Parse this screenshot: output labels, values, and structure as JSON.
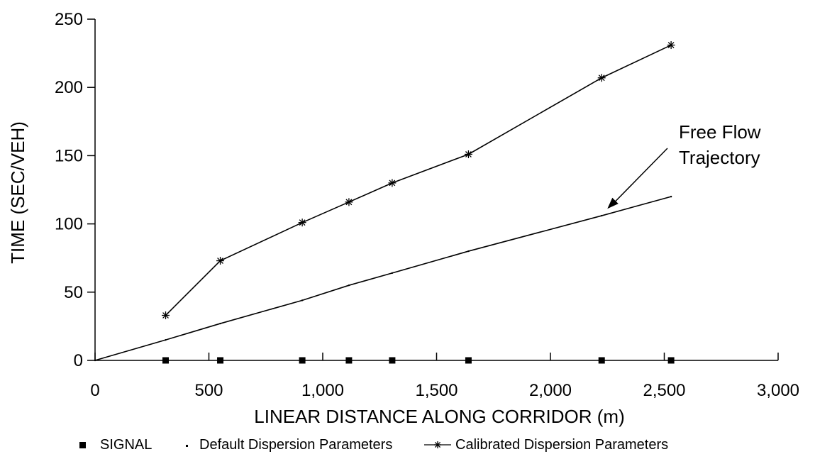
{
  "chart_data": {
    "type": "line",
    "xlabel": "LINEAR DISTANCE ALONG CORRIDOR (m)",
    "ylabel": "TIME (SEC/VEH)",
    "xlim": [
      0,
      3000
    ],
    "ylim": [
      0,
      250
    ],
    "x_ticks": [
      0,
      500,
      1000,
      1500,
      2000,
      2500,
      3000
    ],
    "x_tick_labels": [
      "0",
      "500",
      "1,000",
      "1,500",
      "2,000",
      "2,500",
      "3,000"
    ],
    "y_ticks": [
      0,
      50,
      100,
      150,
      200,
      250
    ],
    "y_tick_labels": [
      "0",
      "50",
      "100",
      "150",
      "200",
      "250"
    ],
    "grid": false,
    "legend_position": "bottom",
    "series": [
      {
        "name": "SIGNAL",
        "marker": "square",
        "line": false,
        "x": [
          310,
          550,
          910,
          1115,
          1305,
          1640,
          2225,
          2530
        ],
        "y": [
          0,
          0,
          0,
          0,
          0,
          0,
          0,
          0
        ]
      },
      {
        "name": "Default Dispersion Parameters",
        "marker": "dot",
        "line": true,
        "x": [
          0,
          310,
          550,
          910,
          1115,
          1305,
          1640,
          2225,
          2530
        ],
        "y": [
          0,
          15,
          27,
          44,
          55,
          64,
          80,
          106,
          120
        ]
      },
      {
        "name": "Calibrated Dispersion Parameters",
        "marker": "asterisk",
        "line": true,
        "x": [
          310,
          550,
          910,
          1115,
          1305,
          1640,
          2225,
          2530
        ],
        "y": [
          33,
          73,
          101,
          116,
          130,
          151,
          207,
          231
        ]
      }
    ],
    "annotations": [
      {
        "text_lines": [
          "Free Flow",
          "Trajectory"
        ],
        "arrow_to": {
          "x": 2250,
          "y": 109
        }
      }
    ]
  }
}
